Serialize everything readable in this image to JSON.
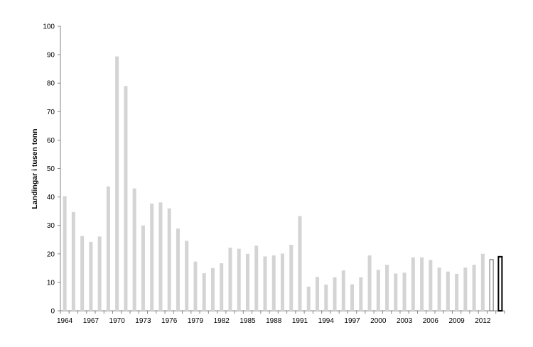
{
  "chart_data": {
    "type": "bar",
    "title": "",
    "xlabel": "",
    "ylabel": "Landingar i tusen tonn",
    "ylim": [
      0,
      100
    ],
    "yticks": [
      0,
      10,
      20,
      30,
      40,
      50,
      60,
      70,
      80,
      90,
      100
    ],
    "grid": false,
    "categories": [
      1964,
      1965,
      1966,
      1967,
      1968,
      1969,
      1970,
      1971,
      1972,
      1973,
      1974,
      1975,
      1976,
      1977,
      1978,
      1979,
      1980,
      1981,
      1982,
      1983,
      1984,
      1985,
      1986,
      1987,
      1988,
      1989,
      1990,
      1991,
      1992,
      1993,
      1994,
      1995,
      1996,
      1997,
      1998,
      1999,
      2000,
      2001,
      2002,
      2003,
      2004,
      2005,
      2006,
      2007,
      2008,
      2009,
      2010,
      2011,
      2012,
      2013,
      2014
    ],
    "xtick_labels": [
      "1964",
      "1967",
      "1970",
      "1973",
      "1976",
      "1979",
      "1982",
      "1985",
      "1988",
      "1991",
      "1994",
      "1997",
      "2000",
      "2003",
      "2006",
      "2009",
      "2012"
    ],
    "values": [
      40.3,
      34.7,
      26.3,
      24.2,
      26.1,
      43.7,
      89.4,
      79.0,
      43.0,
      30.0,
      37.7,
      38.1,
      36.0,
      28.9,
      24.6,
      17.3,
      13.2,
      15.0,
      16.7,
      22.2,
      21.8,
      20.0,
      22.9,
      19.1,
      19.5,
      20.1,
      23.2,
      33.3,
      8.5,
      11.9,
      9.2,
      11.8,
      14.2,
      9.3,
      11.8,
      19.5,
      14.4,
      16.2,
      13.1,
      13.4,
      18.8,
      18.8,
      17.9,
      15.2,
      13.8,
      13.0,
      15.2,
      16.2,
      20.0,
      18.0,
      19.0
    ],
    "bar_styles": {
      "default": "solid",
      "2013": "outline-grey",
      "2014": "outline-black-thick"
    },
    "colors": {
      "bar": "#d4d4d4",
      "outline_grey": "#7f7f7f",
      "outline_black": "#000000",
      "axis": "#868686"
    }
  }
}
